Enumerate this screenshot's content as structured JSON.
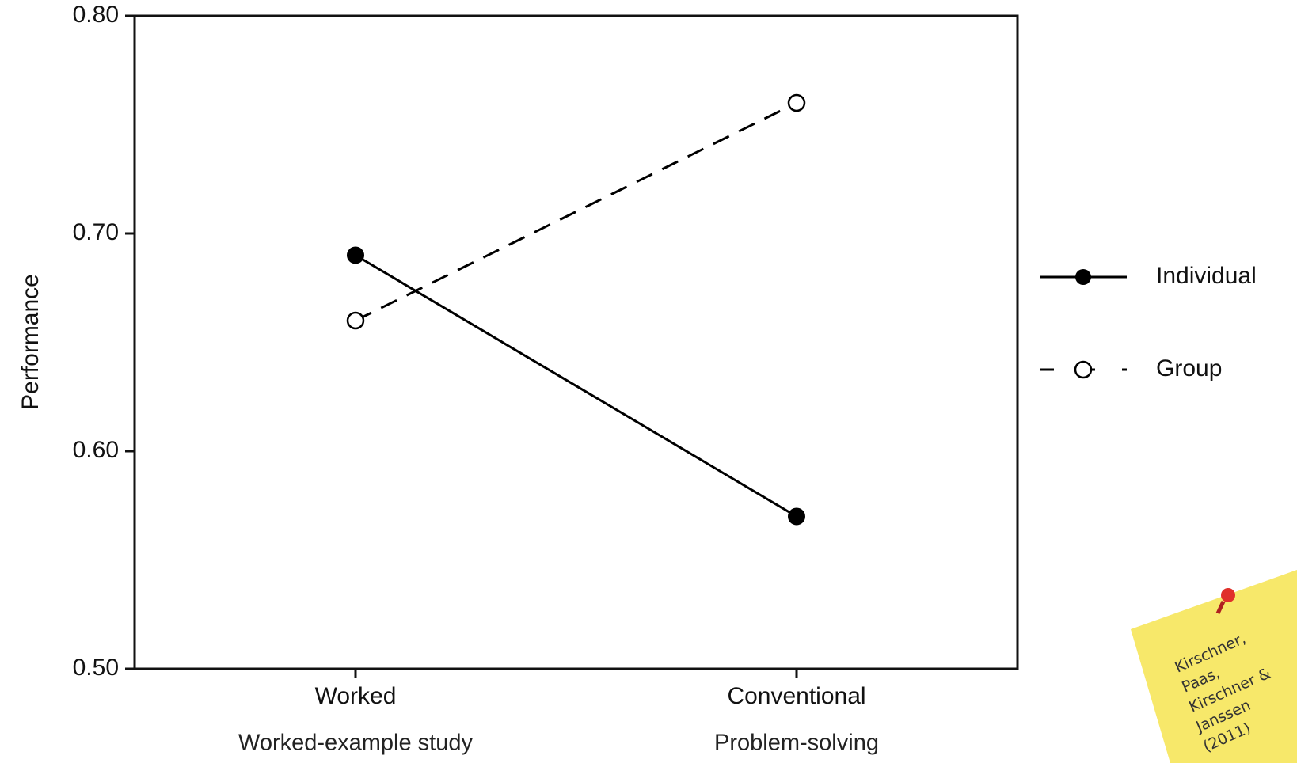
{
  "chart_data": {
    "type": "line",
    "y_label": "Performance",
    "categories": [
      "Worked",
      "Conventional"
    ],
    "category_sublabels": [
      "Worked-example study",
      "Problem-solving"
    ],
    "series": [
      {
        "name": "Individual",
        "color": "#000000",
        "dash": false,
        "marker": "filled",
        "values": [
          0.69,
          0.57
        ]
      },
      {
        "name": "Group",
        "color": "#000000",
        "dash": true,
        "marker": "open",
        "values": [
          0.66,
          0.76
        ]
      }
    ],
    "ylim": [
      0.5,
      0.8
    ],
    "yticks": [
      {
        "value": 0.5,
        "label": "0.50"
      },
      {
        "value": 0.6,
        "label": "0.60"
      },
      {
        "value": 0.7,
        "label": "0.70"
      },
      {
        "value": 0.8,
        "label": "0.80"
      }
    ],
    "grid": false,
    "legend": "right",
    "annotation": [
      "Kirschner,",
      "Paas,",
      "Kirschner &",
      "Janssen",
      "(2011)"
    ]
  }
}
